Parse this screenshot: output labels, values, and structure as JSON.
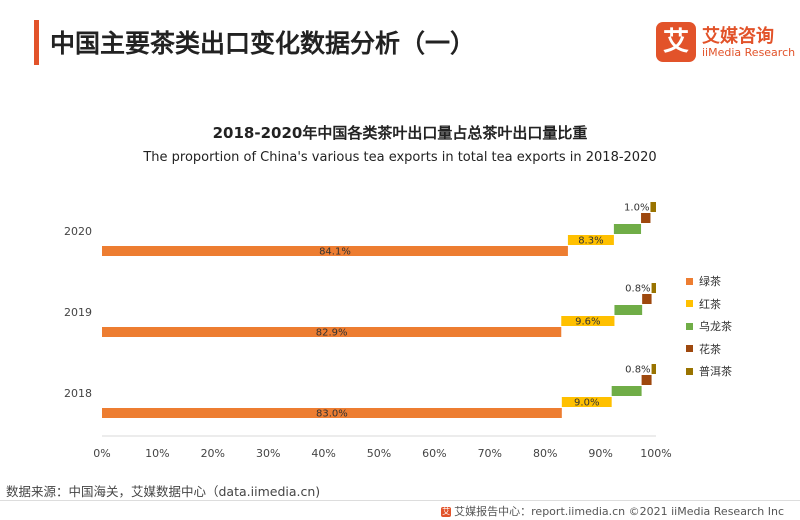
{
  "header": {
    "title": "中国主要茶类出口变化数据分析（一）"
  },
  "logo": {
    "mark": "艾",
    "cn": "艾媒咨询",
    "en": "iiMedia Research"
  },
  "chart_data": {
    "type": "bar",
    "orientation": "horizontal",
    "stacked": true,
    "title": "2018-2020年中国各类茶叶出口量占总茶叶出口量比重",
    "subtitle": "The proportion of China's various tea exports in total tea exports in 2018-2020",
    "categories": [
      "2020",
      "2019",
      "2018"
    ],
    "xlim": [
      0,
      100
    ],
    "x_ticks": [
      "0%",
      "10%",
      "20%",
      "30%",
      "40%",
      "50%",
      "60%",
      "70%",
      "80%",
      "90%",
      "100%"
    ],
    "grid": false,
    "legend_position": "right",
    "series": [
      {
        "name": "绿茶",
        "color": "#ed7d31",
        "values": [
          84.1,
          82.9,
          83.0
        ],
        "labels": [
          "84.1%",
          "82.9%",
          "83.0%"
        ]
      },
      {
        "name": "红茶",
        "color": "#ffc000",
        "values": [
          8.3,
          9.6,
          9.0
        ],
        "labels": [
          "8.3%",
          "9.6%",
          "9.0%"
        ]
      },
      {
        "name": "乌龙茶",
        "color": "#70ad47",
        "values": [
          4.9,
          5.0,
          5.4
        ],
        "labels": [
          "",
          "",
          ""
        ]
      },
      {
        "name": "花茶",
        "color": "#9e480e",
        "values": [
          1.7,
          1.7,
          1.8
        ],
        "labels": [
          "",
          "",
          ""
        ]
      },
      {
        "name": "普洱茶",
        "color": "#997300",
        "values": [
          1.0,
          0.8,
          0.8
        ],
        "labels": [
          "1.0%",
          "0.8%",
          "0.8%"
        ]
      }
    ]
  },
  "source": "数据来源：中国海关，艾媒数据中心（data.iimedia.cn)",
  "footer": {
    "icon": "艾",
    "text": "艾媒报告中心：report.iimedia.cn   ©2021  iiMedia Research  Inc"
  }
}
